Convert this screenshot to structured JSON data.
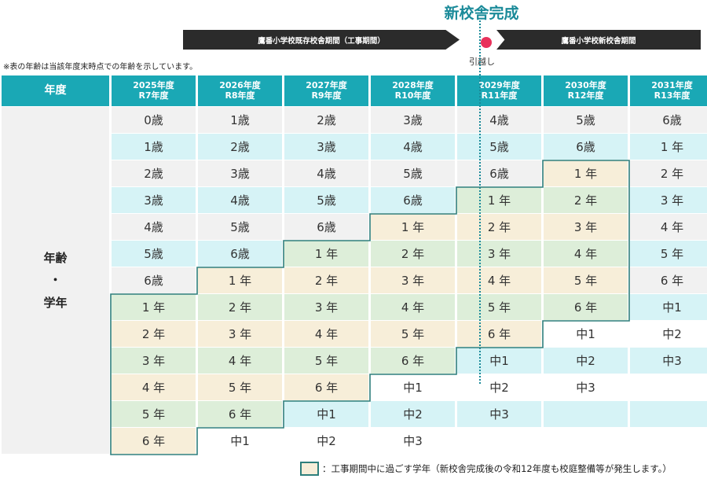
{
  "title": "新校舎完成",
  "banner_left": "鷹番小学校既存校舎期間（工事期間）",
  "banner_right": "鷹番小学校新校舎期間",
  "move_label": "引越し",
  "note": "※表の年齢は当該年度末時点での年齢を示しています。",
  "header": {
    "first": "年度",
    "years": [
      {
        "year": "2025年度",
        "reiwa": "R7年度"
      },
      {
        "year": "2026年度",
        "reiwa": "R8年度"
      },
      {
        "year": "2027年度",
        "reiwa": "R9年度"
      },
      {
        "year": "2028年度",
        "reiwa": "R10年度"
      },
      {
        "year": "2029年度",
        "reiwa": "R11年度"
      },
      {
        "year": "2030年度",
        "reiwa": "R12年度"
      },
      {
        "year": "2031年度",
        "reiwa": "R13年度"
      }
    ]
  },
  "side_label": {
    "line1": "年齢",
    "line2": "・",
    "line3": "学年"
  },
  "rows": [
    [
      "0歳",
      "1歳",
      "2歳",
      "3歳",
      "4歳",
      "5歳",
      "6歳"
    ],
    [
      "1歳",
      "2歳",
      "3歳",
      "4歳",
      "5歳",
      "6歳",
      "1 年"
    ],
    [
      "2歳",
      "3歳",
      "4歳",
      "5歳",
      "6歳",
      "1 年",
      "2 年"
    ],
    [
      "3歳",
      "4歳",
      "5歳",
      "6歳",
      "1 年",
      "2 年",
      "3 年"
    ],
    [
      "4歳",
      "5歳",
      "6歳",
      "1 年",
      "2 年",
      "3 年",
      "4 年"
    ],
    [
      "5歳",
      "6歳",
      "1 年",
      "2 年",
      "3 年",
      "4 年",
      "5 年"
    ],
    [
      "6歳",
      "1 年",
      "2 年",
      "3 年",
      "4 年",
      "5 年",
      "6 年"
    ],
    [
      "1 年",
      "2 年",
      "3 年",
      "4 年",
      "5 年",
      "6 年",
      "中1"
    ],
    [
      "2 年",
      "3 年",
      "4 年",
      "5 年",
      "6 年",
      "中1",
      "中2"
    ],
    [
      "3 年",
      "4 年",
      "5 年",
      "6 年",
      "中1",
      "中2",
      "中3"
    ],
    [
      "4 年",
      "5 年",
      "6 年",
      "中1",
      "中2",
      "中3",
      ""
    ],
    [
      "5 年",
      "6 年",
      "中1",
      "中2",
      "中3",
      "",
      ""
    ],
    [
      "6 年",
      "中1",
      "中2",
      "中3",
      "",
      "",
      ""
    ]
  ],
  "colors": {
    "header": "#1aa8b5",
    "row_gray": "#f1f1f1",
    "row_cyan": "#d6f3f6",
    "construction_cream": "#f7eed9",
    "overlap_green": "#ddeed9",
    "outline": "#2e7f7c",
    "move_dot": "#e8315b",
    "title": "#1a8a99"
  },
  "legend": "：工事期間中に過ごす学年（新校舎完成後の令和12年度も校庭整備等が発生します。）"
}
